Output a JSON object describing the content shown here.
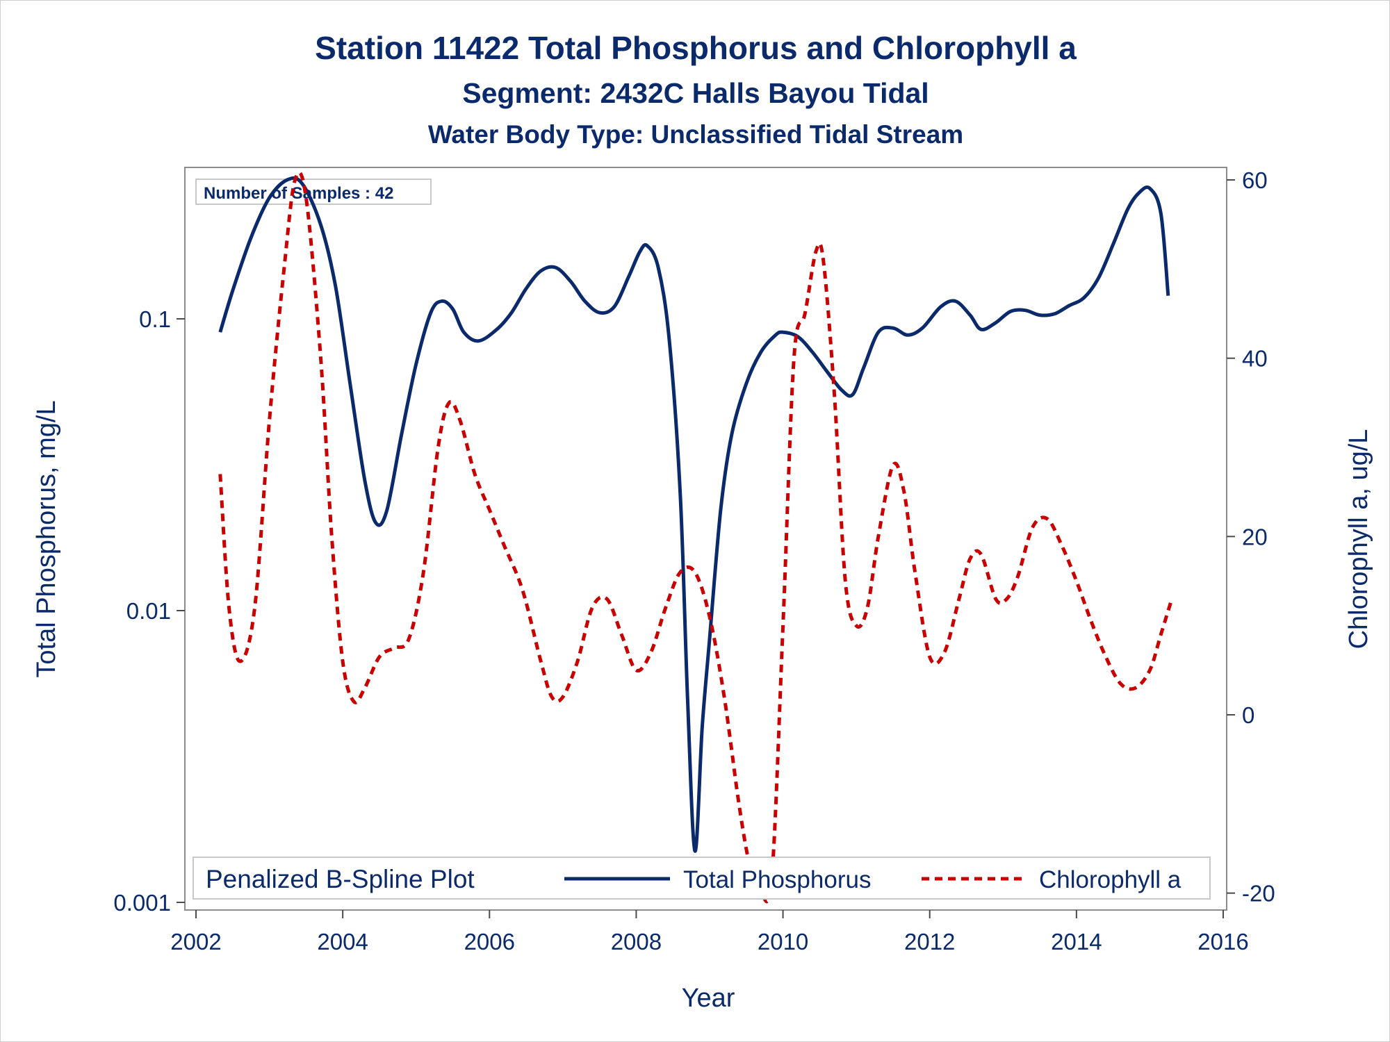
{
  "chart_data": {
    "type": "line",
    "title": "Station 11422  Total Phosphorus and Chlorophyll a",
    "subtitle": "Segment: 2432C  Halls Bayou Tidal",
    "subtitle2": "Water Body Type: Unclassified Tidal Stream",
    "inset_label": "Number of Samples : 42",
    "xlabel": "Year",
    "ylabel_left": "Total Phosphorus, mg/L",
    "ylabel_right": "Chlorophyll a, ug/L",
    "xlim": [
      2002,
      2016
    ],
    "ylim_left": [
      0.001,
      0.35
    ],
    "ylim_right": [
      -20,
      60
    ],
    "left_scale": "log",
    "x_ticks": [
      "2002",
      "2004",
      "2006",
      "2008",
      "2010",
      "2012",
      "2014",
      "2016"
    ],
    "x_tick_values": [
      2002,
      2004,
      2006,
      2008,
      2010,
      2012,
      2014,
      2016
    ],
    "y_left_ticks": [
      "0.001",
      "0.01",
      "0.1"
    ],
    "y_left_tick_values": [
      0.001,
      0.01,
      0.1
    ],
    "y_right_ticks": [
      "-20",
      "0",
      "20",
      "40",
      "60"
    ],
    "y_right_tick_values": [
      -20,
      0,
      20,
      40,
      60
    ],
    "legend": {
      "title": "Penalized B-Spline Plot",
      "placement": "bottom-inside"
    },
    "series": [
      {
        "name": "Total Phosphorus",
        "axis": "left",
        "color": "#0b2a6b",
        "style": "solid",
        "x": [
          2002.33,
          2002.5,
          2002.75,
          2003.0,
          2003.25,
          2003.45,
          2003.7,
          2003.9,
          2004.1,
          2004.3,
          2004.45,
          2004.6,
          2004.8,
          2005.0,
          2005.2,
          2005.35,
          2005.5,
          2005.65,
          2005.85,
          2006.1,
          2006.3,
          2006.5,
          2006.7,
          2006.9,
          2007.1,
          2007.3,
          2007.5,
          2007.7,
          2007.9,
          2008.05,
          2008.15,
          2008.3,
          2008.45,
          2008.6,
          2008.7,
          2008.8,
          2008.9,
          2009.0,
          2009.15,
          2009.3,
          2009.5,
          2009.7,
          2009.9,
          2010.0,
          2010.2,
          2010.4,
          2010.6,
          2010.8,
          2010.95,
          2011.1,
          2011.3,
          2011.5,
          2011.7,
          2011.9,
          2012.15,
          2012.35,
          2012.55,
          2012.7,
          2012.9,
          2013.1,
          2013.3,
          2013.5,
          2013.7,
          2013.9,
          2014.1,
          2014.3,
          2014.5,
          2014.7,
          2014.85,
          2015.0,
          2015.15,
          2015.25
        ],
        "values": [
          0.09,
          0.125,
          0.19,
          0.26,
          0.3,
          0.29,
          0.21,
          0.13,
          0.06,
          0.028,
          0.02,
          0.022,
          0.04,
          0.07,
          0.105,
          0.115,
          0.108,
          0.09,
          0.084,
          0.092,
          0.105,
          0.127,
          0.146,
          0.15,
          0.135,
          0.115,
          0.105,
          0.11,
          0.14,
          0.17,
          0.178,
          0.15,
          0.085,
          0.025,
          0.005,
          0.0015,
          0.004,
          0.008,
          0.022,
          0.04,
          0.06,
          0.077,
          0.088,
          0.09,
          0.087,
          0.077,
          0.066,
          0.057,
          0.055,
          0.068,
          0.09,
          0.093,
          0.088,
          0.093,
          0.11,
          0.115,
          0.103,
          0.092,
          0.097,
          0.106,
          0.107,
          0.103,
          0.104,
          0.111,
          0.118,
          0.138,
          0.18,
          0.238,
          0.27,
          0.28,
          0.23,
          0.12
        ]
      },
      {
        "name": "Chlorophyll a",
        "axis": "right",
        "color": "#c80000",
        "style": "dashed",
        "x": [
          2002.33,
          2002.45,
          2002.6,
          2002.8,
          2003.0,
          2003.2,
          2003.35,
          2003.5,
          2003.7,
          2003.85,
          2004.0,
          2004.15,
          2004.3,
          2004.5,
          2004.7,
          2004.9,
          2005.1,
          2005.3,
          2005.45,
          2005.6,
          2005.8,
          2006.0,
          2006.2,
          2006.45,
          2006.7,
          2006.85,
          2007.0,
          2007.2,
          2007.4,
          2007.6,
          2007.8,
          2008.0,
          2008.2,
          2008.4,
          2008.6,
          2008.8,
          2009.0,
          2009.2,
          2009.4,
          2009.55,
          2009.7,
          2009.85,
          2010.0,
          2010.15,
          2010.3,
          2010.45,
          2010.55,
          2010.7,
          2010.85,
          2011.0,
          2011.15,
          2011.3,
          2011.5,
          2011.65,
          2011.8,
          2012.0,
          2012.2,
          2012.4,
          2012.55,
          2012.7,
          2012.9,
          2013.05,
          2013.2,
          2013.4,
          2013.6,
          2013.8,
          2014.0,
          2014.2,
          2014.4,
          2014.6,
          2014.8,
          2015.0,
          2015.15,
          2015.3
        ],
        "values": [
          27,
          12,
          6,
          12,
          33,
          50,
          60,
          58,
          40,
          20,
          6,
          1.5,
          3,
          6.5,
          7.5,
          8.5,
          16,
          30,
          35,
          33,
          27,
          23,
          19,
          14,
          6,
          2,
          2,
          6,
          12,
          13,
          9,
          5,
          7,
          12,
          16,
          16,
          11,
          2,
          -10,
          -17,
          -20,
          -18,
          10,
          40,
          45,
          52,
          51,
          36,
          15,
          10,
          12,
          20,
          28,
          25,
          16,
          6.5,
          7,
          13,
          17.5,
          18,
          13,
          13,
          15.5,
          21,
          22,
          19,
          15,
          10.5,
          6.5,
          3.5,
          3,
          5,
          9,
          13
        ]
      }
    ]
  }
}
